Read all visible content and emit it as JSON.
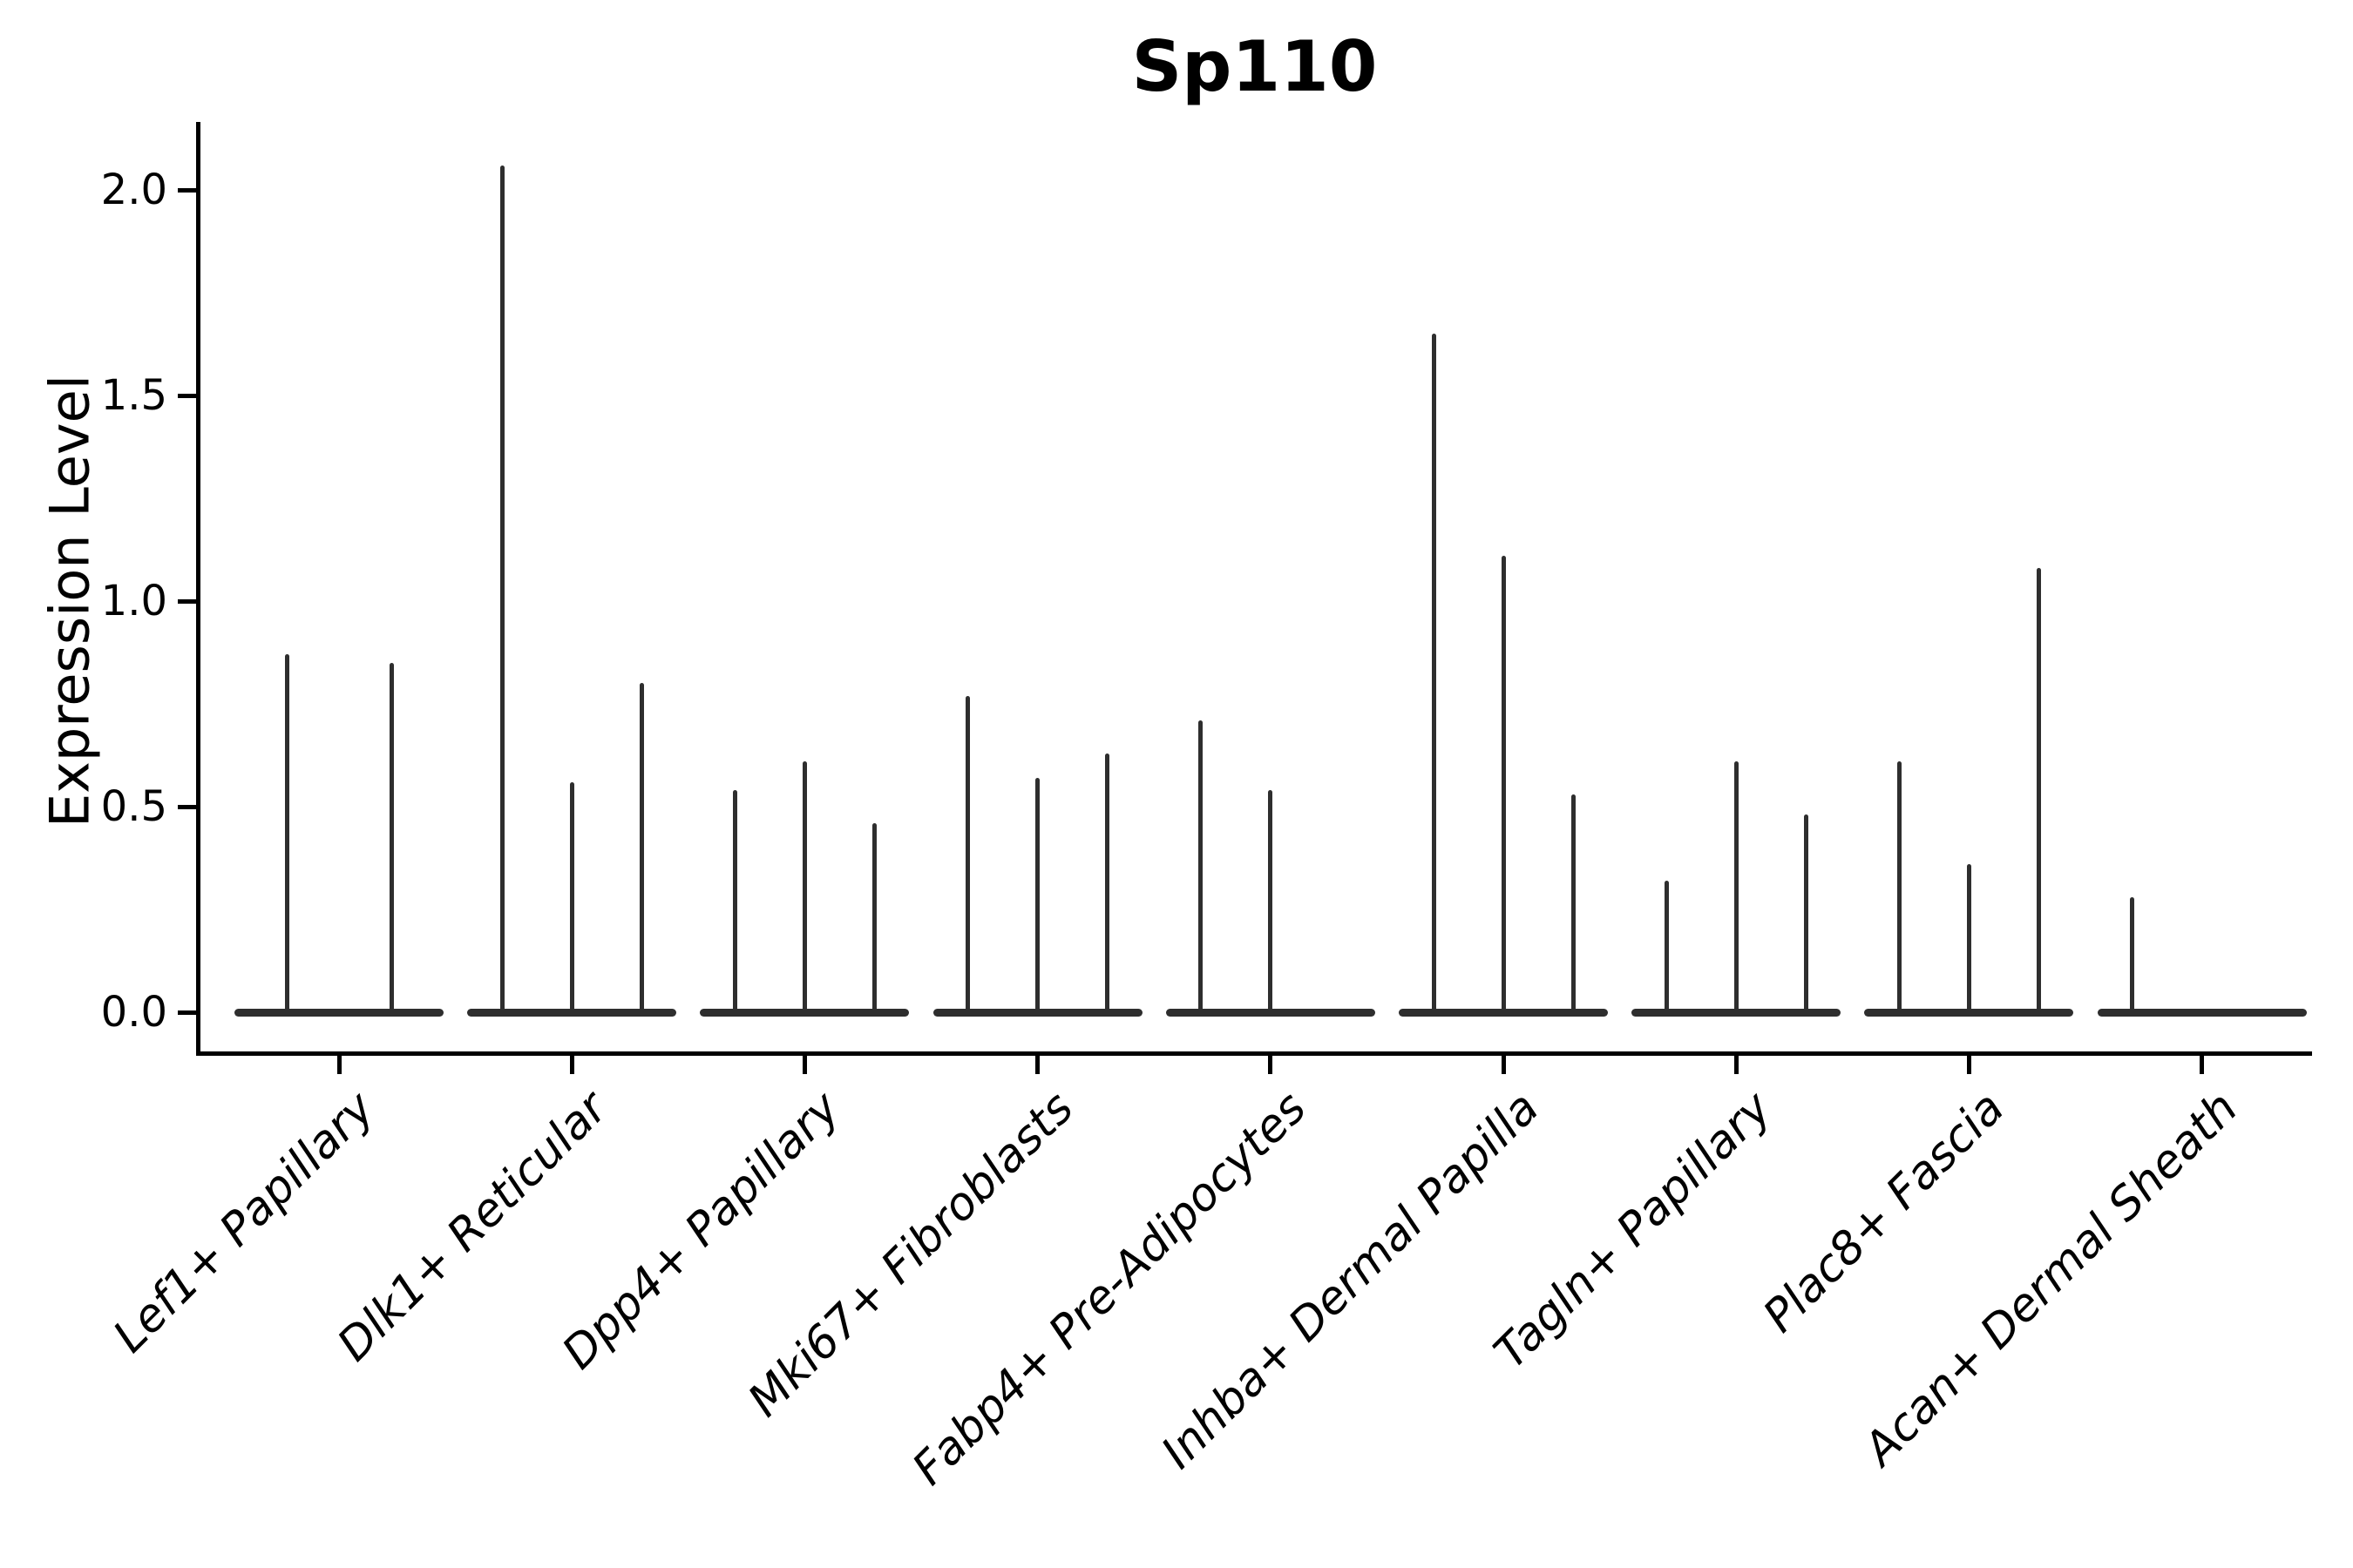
{
  "title": "Sp110",
  "chart_data": {
    "type": "violin",
    "title": "Sp110",
    "xlabel": "",
    "ylabel": "Expression Level",
    "ylim": [
      0,
      2.16
    ],
    "yticks": [
      0.0,
      0.5,
      1.0,
      1.5,
      2.0
    ],
    "grid": false,
    "legend": false,
    "description": "Thin violin plot of Sp110 expression; each category holds 2-3 narrow violins flattened at 0 with a thin spike reaching the listed maximum expression value.",
    "categories": [
      "Lef1+ Papillary",
      "Dlk1+ Reticular",
      "Dpp4+ Papillary",
      "Mki67+ Fibroblasts",
      "Fabp4+ Pre-Adipocytes",
      "Inhba+ Dermal Papilla",
      "Tagln+ Papillary",
      "Plac8+ Fascia",
      "Acan+ Dermal Sheath"
    ],
    "groups": [
      {
        "category": "Lef1+ Papillary",
        "violin_peaks": [
          0.87,
          0.85
        ]
      },
      {
        "category": "Dlk1+ Reticular",
        "violin_peaks": [
          2.06,
          0.56,
          0.8
        ]
      },
      {
        "category": "Dpp4+ Papillary",
        "violin_peaks": [
          0.54,
          0.61,
          0.46
        ]
      },
      {
        "category": "Mki67+ Fibroblasts",
        "violin_peaks": [
          0.77,
          0.57,
          0.63
        ]
      },
      {
        "category": "Fabp4+ Pre-Adipocytes",
        "violin_peaks": [
          0.71,
          0.54,
          0.0
        ]
      },
      {
        "category": "Inhba+ Dermal Papilla",
        "violin_peaks": [
          1.65,
          1.11,
          0.53
        ]
      },
      {
        "category": "Tagln+ Papillary",
        "violin_peaks": [
          0.32,
          0.61,
          0.48
        ]
      },
      {
        "category": "Plac8+ Fascia",
        "violin_peaks": [
          0.61,
          0.36,
          1.08
        ]
      },
      {
        "category": "Acan+ Dermal Sheath",
        "violin_peaks": [
          0.28,
          0.0,
          0.0
        ]
      }
    ],
    "colors": {
      "violin_line": "#2e2e2e",
      "axis": "#000000",
      "background": "#ffffff"
    }
  }
}
